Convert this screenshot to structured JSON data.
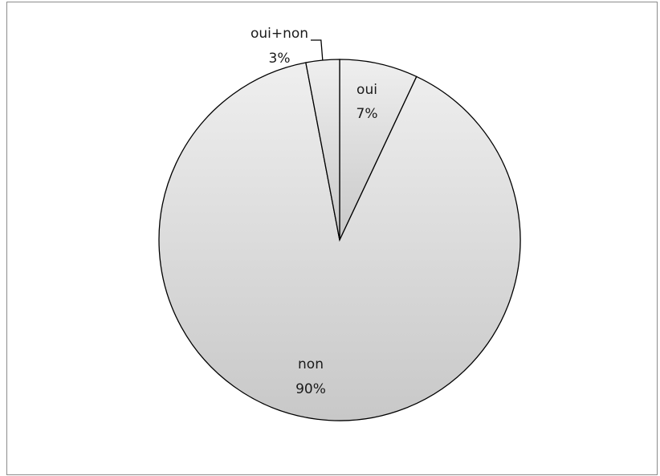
{
  "chart_data": {
    "type": "pie",
    "title": "",
    "legend": "none",
    "start_angle": "top",
    "direction": "clockwise",
    "slices": [
      {
        "name": "oui",
        "label": "oui",
        "percent_label": "7%",
        "value": 7
      },
      {
        "name": "non",
        "label": "non",
        "percent_label": "90%",
        "value": 90
      },
      {
        "name": "oui+non",
        "label": "oui+non",
        "percent_label": "3%",
        "value": 3
      }
    ],
    "colors": {
      "fill_light": "#efefef",
      "fill_dark": "#c8c8c8",
      "stroke": "#000000",
      "frame": "#8c8c8c"
    }
  }
}
